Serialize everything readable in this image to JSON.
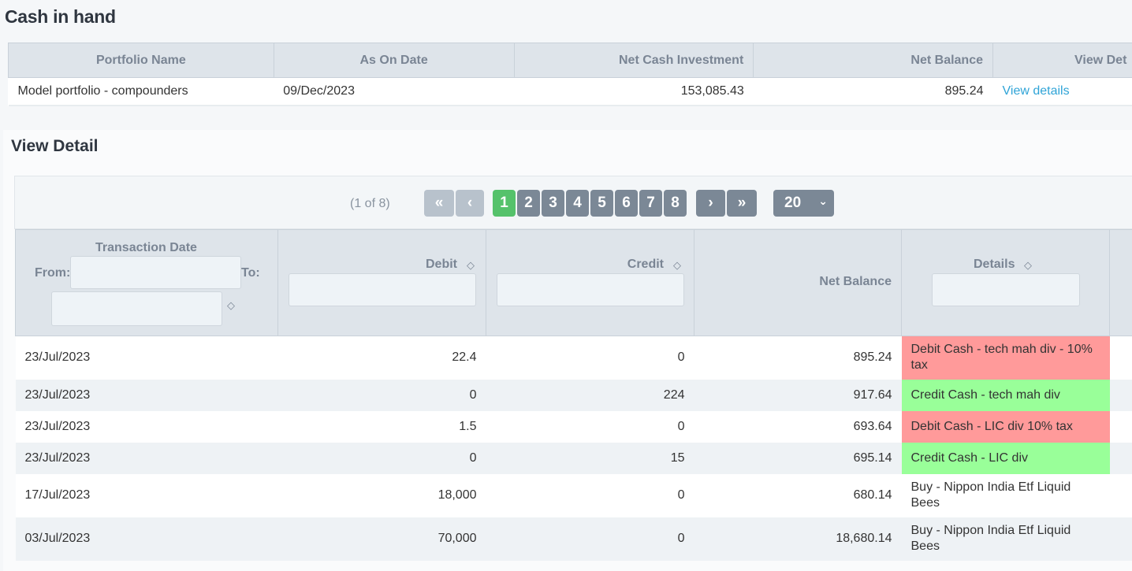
{
  "page": {
    "title": "Cash in hand"
  },
  "summary": {
    "headers": [
      "Portfolio Name",
      "As On Date",
      "Net Cash Investment",
      "Net Balance",
      "View Det"
    ],
    "row": {
      "portfolio_name": "Model portfolio - compounders",
      "as_on_date": "09/Dec/2023",
      "net_cash_investment": "153,085.43",
      "net_balance": "895.24",
      "view_link": "View details"
    }
  },
  "detail": {
    "title": "View Detail",
    "paginator": {
      "report": "(1 of 8)",
      "first": "«",
      "prev": "‹",
      "pages": [
        "1",
        "2",
        "3",
        "4",
        "5",
        "6",
        "7",
        "8"
      ],
      "current_page": "1",
      "next": "›",
      "last": "»",
      "rows_per_page": "20"
    },
    "columns": {
      "date": "Transaction Date",
      "from": "From:",
      "to": "To:",
      "debit": "Debit",
      "credit": "Credit",
      "net_balance": "Net Balance",
      "details": "Details"
    },
    "rows": [
      {
        "date": "23/Jul/2023",
        "debit": "22.4",
        "credit": "0",
        "net": "895.24",
        "details": "Debit Cash - tech mah div - 10% tax",
        "type": "debit"
      },
      {
        "date": "23/Jul/2023",
        "debit": "0",
        "credit": "224",
        "net": "917.64",
        "details": "Credit Cash - tech mah div",
        "type": "credit"
      },
      {
        "date": "23/Jul/2023",
        "debit": "1.5",
        "credit": "0",
        "net": "693.64",
        "details": "Debit Cash - LIC div 10% tax",
        "type": "debit"
      },
      {
        "date": "23/Jul/2023",
        "debit": "0",
        "credit": "15",
        "net": "695.14",
        "details": "Credit Cash - LIC div",
        "type": "credit"
      },
      {
        "date": "17/Jul/2023",
        "debit": "18,000",
        "credit": "0",
        "net": "680.14",
        "details": "Buy - Nippon India Etf Liquid Bees",
        "type": "none"
      },
      {
        "date": "03/Jul/2023",
        "debit": "70,000",
        "credit": "0",
        "net": "18,680.14",
        "details": "Buy - Nippon India Etf Liquid Bees",
        "type": "none"
      }
    ]
  },
  "colors": {
    "debit_row": "#ff9a9a",
    "credit_row": "#99ff99",
    "active_page": "#55c26b",
    "link": "#2fa4d7"
  }
}
